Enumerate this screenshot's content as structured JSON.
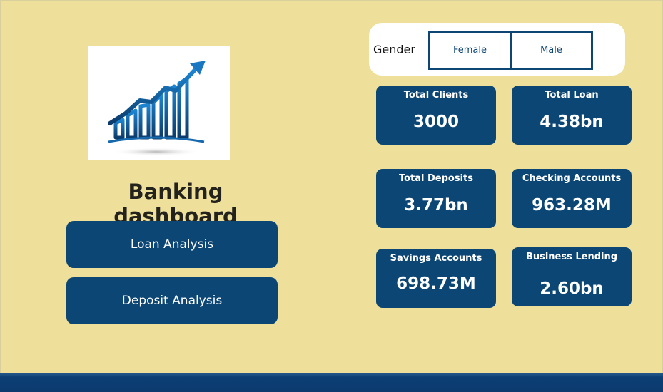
{
  "title": "Banking dashboard",
  "nav": {
    "loan_label": "Loan Analysis",
    "deposit_label": "Deposit Analysis"
  },
  "slicer": {
    "label": "Gender",
    "options": [
      "Female",
      "Male"
    ]
  },
  "kpis": [
    {
      "label": "Total Clients",
      "value": "3000"
    },
    {
      "label": "Total Loan",
      "value": "4.38bn"
    },
    {
      "label": "Total Deposits",
      "value": "3.77bn"
    },
    {
      "label": "Checking Accounts",
      "value": "963.28M"
    },
    {
      "label": "Savings Accounts",
      "value": "698.73M"
    },
    {
      "label": "Business Lending",
      "value": "2.60bn"
    }
  ],
  "colors": {
    "background": "#eee09b",
    "card": "#0c4675",
    "footer": "#0b3a6f",
    "logo_accent": "#1a78c2"
  },
  "logo_icon": "growth-chart-icon"
}
